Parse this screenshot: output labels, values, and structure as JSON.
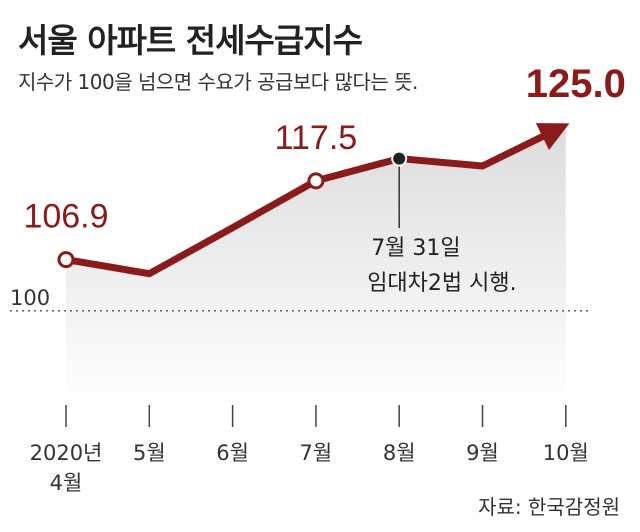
{
  "title": "서울 아파트 전세수급지수",
  "subtitle": "지수가 100을 넘으면 수요가 공급보다 많다는 뜻.",
  "source": "자료: 한국감정원",
  "colors": {
    "line": "#8b1a1a",
    "area_top": "#dcdcdc"
  },
  "chart_data": {
    "type": "line",
    "categories": [
      "2020년 4월",
      "5월",
      "6월",
      "7월",
      "8월",
      "9월",
      "10월"
    ],
    "category_lines": [
      [
        "2020년",
        "4월"
      ],
      [
        "5월"
      ],
      [
        "6월"
      ],
      [
        "7월"
      ],
      [
        "8월"
      ],
      [
        "9월"
      ],
      [
        "10월"
      ]
    ],
    "values": [
      106.9,
      105.0,
      111.2,
      117.5,
      120.5,
      119.5,
      125.0
    ],
    "ylim": [
      88,
      130
    ],
    "y_ticks": [
      100
    ],
    "y_tick_labels": [
      "100"
    ],
    "data_labels": [
      {
        "index": 0,
        "text": "106.9",
        "marker": "open-circle"
      },
      {
        "index": 3,
        "text": "117.5",
        "marker": "open-circle"
      },
      {
        "index": 6,
        "text": "125.0",
        "marker": "arrow"
      }
    ],
    "annotation": {
      "index": 4,
      "lines": [
        "7월 31일",
        "임대차2법 시행."
      ]
    },
    "grid": false,
    "legend": "none"
  }
}
